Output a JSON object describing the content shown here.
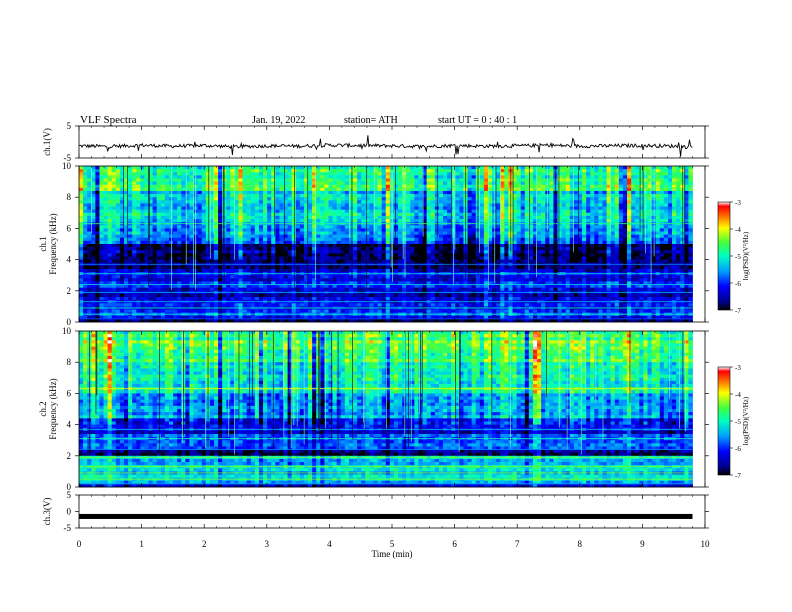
{
  "header": {
    "title": "VLF  Spectra",
    "date": "Jan. 19, 2022",
    "station": "station= ATH",
    "start": "start  UT =   0 : 40 : 1"
  },
  "chart_data": [
    {
      "type": "line",
      "name": "ch1-waveform",
      "ylabel": "ch.1(V)",
      "ylim": [
        -5,
        5
      ],
      "yticks": [
        "5",
        "-5"
      ],
      "x": [
        0,
        0.5,
        1,
        1.5,
        2,
        2.5,
        3,
        3.5,
        4,
        4.5,
        5,
        5.5,
        6,
        6.5,
        7,
        7.5,
        8,
        8.5,
        9,
        9.5,
        9.8
      ],
      "values": [
        -1.2,
        -1.4,
        -1.0,
        -1.3,
        -1.1,
        -1.5,
        -1.2,
        -1.3,
        -1.0,
        -1.1,
        -1.2,
        -1.4,
        -1.1,
        -1.3,
        -1.2,
        -1.0,
        -1.3,
        -1.2,
        -1.1,
        -1.3,
        -1.6
      ]
    },
    {
      "type": "heatmap",
      "name": "ch1-spectrogram",
      "ylabel": "Frequency  (kHz)",
      "channel_label": "ch.1",
      "ylim": [
        0,
        10
      ],
      "yticks": [
        "0",
        "2",
        "4",
        "6",
        "8",
        "10"
      ],
      "bands_khz": [
        {
          "from": 8.5,
          "to": 10,
          "level": -4.8
        },
        {
          "from": 6.5,
          "to": 8.5,
          "level": -5.2
        },
        {
          "from": 5.0,
          "to": 6.5,
          "level": -5.7
        },
        {
          "from": 3.5,
          "to": 5.0,
          "level": -6.6
        },
        {
          "from": 2.3,
          "to": 3.5,
          "level": -6.2
        },
        {
          "from": 1.2,
          "to": 2.3,
          "level": -6.4
        },
        {
          "from": 0.3,
          "to": 1.2,
          "level": -6.0
        },
        {
          "from": 0,
          "to": 0.3,
          "level": -6.8
        }
      ],
      "colorbar": {
        "label": "log(PSD)(V²/Hz)",
        "min": -7,
        "max": -3,
        "ticks": [
          "-3",
          "-4",
          "-5",
          "-6",
          "-7"
        ]
      }
    },
    {
      "type": "heatmap",
      "name": "ch2-spectrogram",
      "ylabel": "Frequency  (kHz)",
      "channel_label": "ch.2",
      "ylim": [
        0,
        10
      ],
      "yticks": [
        "0",
        "2",
        "4",
        "6",
        "8",
        "10"
      ],
      "bands_khz": [
        {
          "from": 8.0,
          "to": 10,
          "level": -4.6
        },
        {
          "from": 6.0,
          "to": 8.0,
          "level": -5.0
        },
        {
          "from": 4.5,
          "to": 6.0,
          "level": -5.6
        },
        {
          "from": 3.5,
          "to": 4.5,
          "level": -6.3
        },
        {
          "from": 2.5,
          "to": 3.5,
          "level": -5.9
        },
        {
          "from": 2.0,
          "to": 2.5,
          "level": -6.6
        },
        {
          "from": 0.3,
          "to": 2.0,
          "level": -5.3
        },
        {
          "from": 0,
          "to": 0.3,
          "level": -6.5
        }
      ],
      "colorbar": {
        "label": "log(PSD)(V²/Hz)",
        "min": -7,
        "max": -3,
        "ticks": [
          "-3",
          "-4",
          "-5",
          "-6",
          "-7"
        ]
      }
    },
    {
      "type": "line",
      "name": "ch3-waveform",
      "ylabel": "ch.3(V)",
      "ylim": [
        -5,
        5
      ],
      "yticks": [
        "5",
        "0",
        "-5"
      ],
      "x": [
        0,
        9.8
      ],
      "values": [
        -1.5,
        -1.5
      ]
    }
  ],
  "xaxis": {
    "label": "Time  (min)",
    "range": [
      0,
      10
    ],
    "ticks": [
      "0",
      "1",
      "2",
      "3",
      "4",
      "5",
      "6",
      "7",
      "8",
      "9",
      "10"
    ]
  }
}
